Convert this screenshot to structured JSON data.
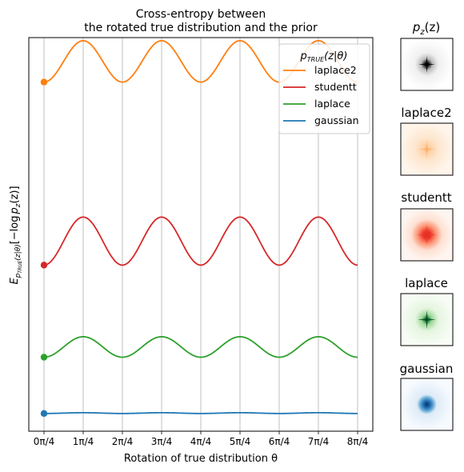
{
  "chart_data": {
    "type": "line",
    "title_line1": "Cross-entropy between",
    "title_line2": "the rotated true distribution and the prior",
    "xlabel": "Rotation of true distribution θ",
    "ylabel": "E_{p_TRUE(z|θ)}[−log p_z(z)]",
    "ylabel_parts": {
      "e": "E",
      "sub": "p",
      "subsub": "TRUE",
      "subrest": "(z|θ)",
      "bracket_text": "[−log",
      "pz": "p",
      "pz_sub": "z",
      "tail": "(z)]"
    },
    "x_range": [
      0,
      8
    ],
    "x_tick_values": [
      0,
      1,
      2,
      3,
      4,
      5,
      6,
      7,
      8
    ],
    "x_tick_labels": [
      "0π/4",
      "1π/4",
      "2π/4",
      "3π/4",
      "4π/4",
      "5π/4",
      "6π/4",
      "7π/4",
      "8π/4"
    ],
    "y_range": [
      0,
      10
    ],
    "y_ticks_shown": false,
    "grid": "vertical",
    "legend": {
      "title": "p_TRUE(z|θ)",
      "title_main": "p",
      "title_sub": "TRUE",
      "title_rest": "(z|θ)",
      "position": "top-right",
      "entries": [
        "laplace2",
        "studentt",
        "laplace",
        "gaussian"
      ]
    },
    "series": [
      {
        "name": "laplace2",
        "color": "#ff7f0e",
        "base": 8.87,
        "amplitude": 1.05,
        "marker_at_x0": true
      },
      {
        "name": "studentt",
        "color": "#d62728",
        "base": 4.22,
        "amplitude": 1.22,
        "marker_at_x0": true
      },
      {
        "name": "laplace",
        "color": "#2ca02c",
        "base": 1.88,
        "amplitude": 0.52,
        "marker_at_x0": true
      },
      {
        "name": "gaussian",
        "color": "#1f77b4",
        "base": 0.45,
        "amplitude": 0.02,
        "marker_at_x0": true
      }
    ]
  },
  "side_panels": {
    "prior": {
      "title": "p_z(z)",
      "title_main": "p",
      "title_sub": "z",
      "title_rest": "(z)",
      "colormap": "Greys"
    },
    "items": [
      {
        "title": "laplace2",
        "color": "#ff7f0e",
        "colormap": "Oranges"
      },
      {
        "title": "studentt",
        "color": "#d62728",
        "colormap": "Reds"
      },
      {
        "title": "laplace",
        "color": "#2ca02c",
        "colormap": "Greens"
      },
      {
        "title": "gaussian",
        "color": "#1f77b4",
        "colormap": "Blues"
      }
    ]
  }
}
